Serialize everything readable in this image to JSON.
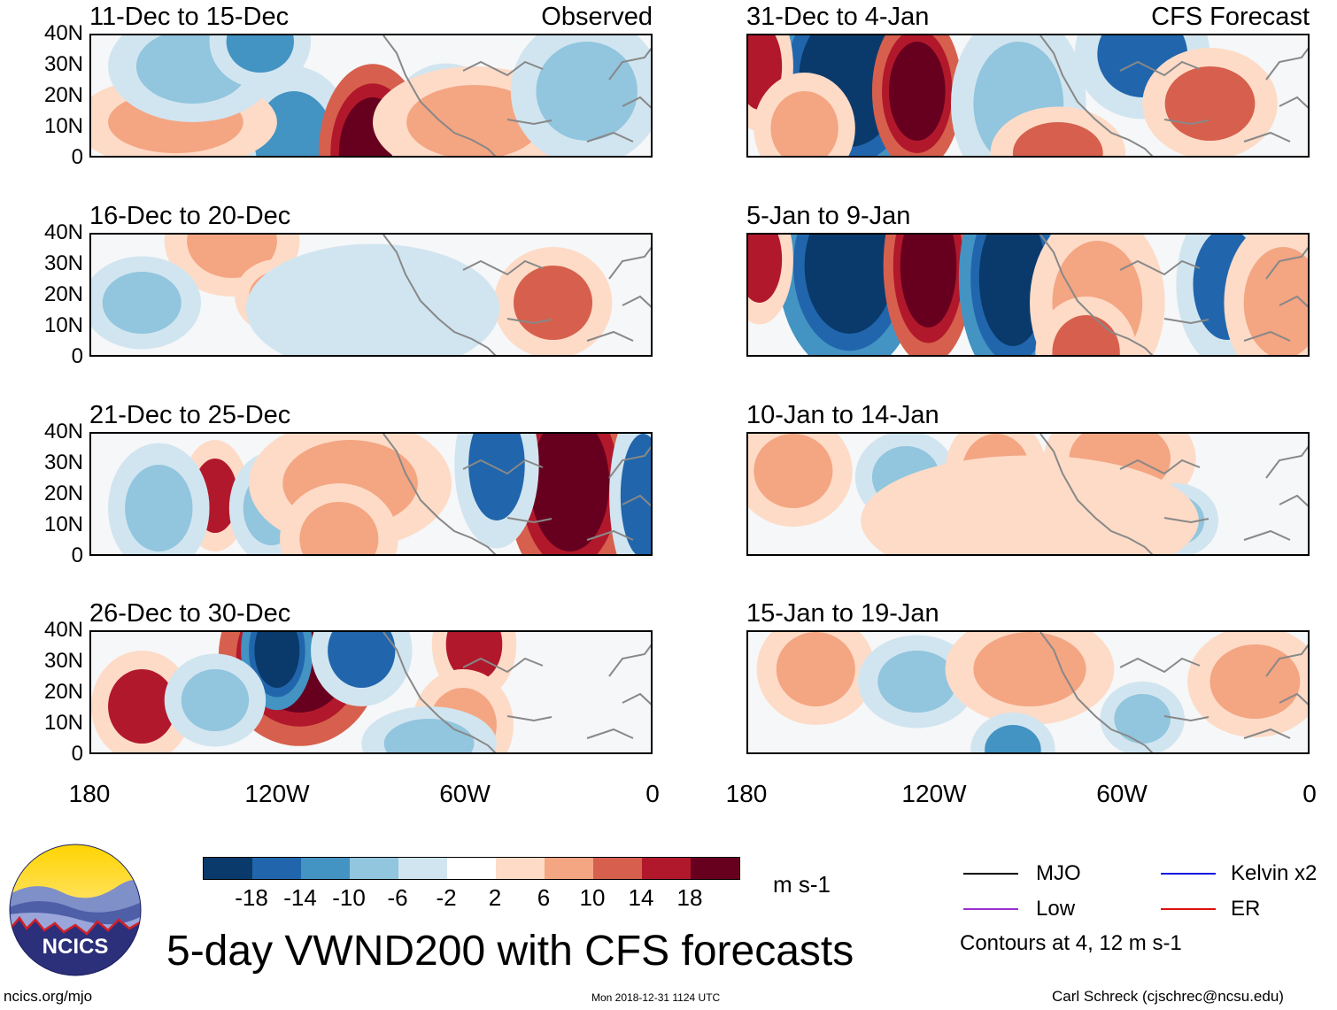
{
  "panels": [
    {
      "title": "11-Dec to 15-Dec",
      "tag": "Observed"
    },
    {
      "title": "31-Dec to 4-Jan",
      "tag": "CFS Forecast"
    },
    {
      "title": "16-Dec to 20-Dec",
      "tag": ""
    },
    {
      "title": "5-Jan to 9-Jan",
      "tag": ""
    },
    {
      "title": "21-Dec to 25-Dec",
      "tag": ""
    },
    {
      "title": "10-Jan to 14-Jan",
      "tag": ""
    },
    {
      "title": "26-Dec to 30-Dec",
      "tag": ""
    },
    {
      "title": "15-Jan to 19-Jan",
      "tag": ""
    }
  ],
  "lat_ticks": [
    "40N",
    "30N",
    "20N",
    "10N",
    "0"
  ],
  "lon_ticks": [
    "180",
    "120W",
    "60W",
    "0"
  ],
  "colorbar": {
    "units": "m s-1",
    "labels": [
      "-18",
      "-14",
      "-10",
      "-6",
      "-2",
      "2",
      "6",
      "10",
      "14",
      "18"
    ],
    "colors": [
      "#0a3a6b",
      "#2166ac",
      "#4393c3",
      "#92c5de",
      "#d1e5f0",
      "#ffffff",
      "#fddbc7",
      "#f4a582",
      "#d6604d",
      "#b2182b",
      "#67001f"
    ]
  },
  "legend": {
    "mjo": "MJO",
    "kelvin": "Kelvin x2",
    "low": "Low",
    "er": "ER",
    "contours_note": "Contours at 4, 12 m s-1",
    "colors": {
      "mjo": "#000000",
      "kelvin": "#1010e0",
      "low": "#9a30d0",
      "er": "#e01010"
    }
  },
  "logo_text": "NCICS",
  "main_title": "5-day VWND200 with CFS forecasts",
  "footer": {
    "left": "ncics.org/mjo",
    "center": "Mon 2018-12-31 1124 UTC",
    "right": "Carl Schreck (cjschrec@ncsu.edu)"
  }
}
